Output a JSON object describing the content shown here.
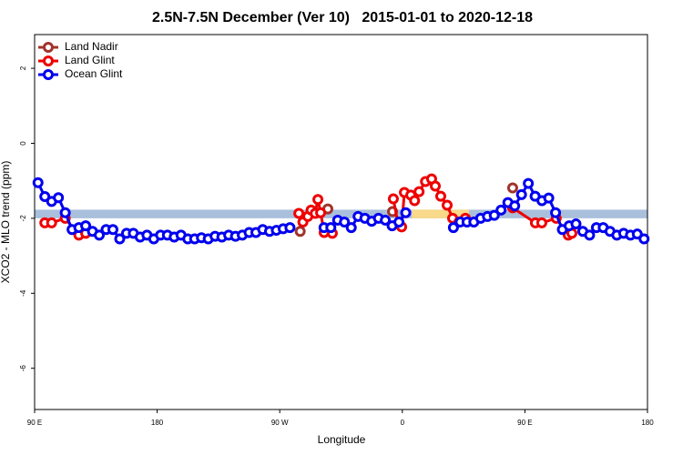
{
  "chart_data": {
    "type": "line",
    "title": "2.5N-7.5N December (Ver 10)   2015-01-01 to 2020-12-18",
    "x_label": "Longitude",
    "y_label": "XCO2 - MLO trend (ppm)",
    "xlim": [
      90,
      540
    ],
    "ylim": [
      -7.1,
      2.9
    ],
    "xticks": [
      {
        "value": 90,
        "label": "90 E"
      },
      {
        "value": 180,
        "label": "180"
      },
      {
        "value": 270,
        "label": "90 W"
      },
      {
        "value": 360,
        "label": "0"
      },
      {
        "value": 450,
        "label": "90 E"
      },
      {
        "value": 540,
        "label": "180"
      }
    ],
    "yticks": [
      -6,
      -4,
      -2,
      0,
      2
    ],
    "reference_band": {
      "ylim": [
        -2.0,
        -1.77
      ],
      "color": "#a9bfdc"
    },
    "highlight_band": {
      "xlim": [
        367,
        409
      ],
      "ylim": [
        -2.0,
        -1.77
      ],
      "color": "#f9d98a"
    },
    "legend": "top-left",
    "series": [
      {
        "name": "Land Nadir",
        "color": "#a0342c",
        "x": [
          285,
          305.3,
          352.8,
          441
        ],
        "values": [
          -2.35,
          -1.75,
          -1.82,
          -1.19
        ]
      },
      {
        "name": "Land Glint",
        "color": "#ee0000",
        "x": [
          97.5,
          102.5,
          112.5,
          122.5,
          127.5,
          284,
          287,
          290.6,
          293,
          296,
          298,
          300,
          302.6,
          308.6,
          353.4,
          356.8,
          359.5,
          361.5,
          366.2,
          369,
          372.3,
          377,
          381.5,
          384.2,
          388.2,
          392.9,
          396.9,
          401.6,
          406.3,
          441,
          457.7,
          462.4,
          473,
          481.8,
          484.5
        ],
        "values": [
          -2.12,
          -2.12,
          -2.0,
          -2.45,
          -2.4,
          -1.87,
          -2.1,
          -1.95,
          -1.78,
          -1.87,
          -1.5,
          -1.85,
          -2.38,
          -2.4,
          -1.48,
          -2.14,
          -2.23,
          -1.31,
          -1.38,
          -1.53,
          -1.29,
          -1.02,
          -0.95,
          -1.14,
          -1.41,
          -1.65,
          -2.0,
          -2.1,
          -2.0,
          -1.72,
          -2.12,
          -2.12,
          -2.0,
          -2.45,
          -2.4
        ]
      },
      {
        "name": "Ocean Glint",
        "color": "#0000ee",
        "x": [
          92.5,
          97.5,
          102.5,
          107.5,
          112.5,
          117.5,
          122.5,
          127.5,
          132.5,
          137.5,
          142.5,
          147.5,
          152.5,
          157.5,
          162.5,
          167.5,
          172.5,
          177.5,
          182.5,
          187.5,
          192.5,
          197.5,
          202.5,
          207.5,
          212.5,
          217.5,
          222.5,
          227.5,
          232.5,
          237.5,
          242.5,
          247.5,
          252.5,
          257.5,
          262.5,
          267.5,
          272.5,
          277.5,
          302.5,
          307.5,
          312.5,
          317.5,
          322.5,
          327.5,
          332.5,
          337.5,
          342.5,
          347.5,
          352.5,
          357.5,
          362.5,
          397.5,
          402.5,
          407.5,
          412.5,
          417.5,
          422.5,
          427.5,
          432.5,
          437.5,
          442.5,
          447.5,
          452.5,
          457.5,
          462.5,
          467.5,
          472.5,
          477.5,
          482.5,
          487.5,
          492.5,
          497.5,
          502.5,
          507.5,
          512.5,
          517.5,
          522.5,
          527.5,
          532.5,
          537.5
        ],
        "values": [
          -1.05,
          -1.42,
          -1.55,
          -1.45,
          -1.85,
          -2.3,
          -2.25,
          -2.2,
          -2.35,
          -2.45,
          -2.3,
          -2.3,
          -2.55,
          -2.4,
          -2.4,
          -2.5,
          -2.45,
          -2.55,
          -2.45,
          -2.45,
          -2.5,
          -2.45,
          -2.55,
          -2.55,
          -2.52,
          -2.55,
          -2.48,
          -2.5,
          -2.45,
          -2.48,
          -2.45,
          -2.38,
          -2.38,
          -2.3,
          -2.35,
          -2.32,
          -2.28,
          -2.25,
          -2.25,
          -2.25,
          -2.05,
          -2.1,
          -2.25,
          -1.95,
          -2.0,
          -2.08,
          -2.0,
          -2.05,
          -2.2,
          -2.1,
          -1.85,
          -2.25,
          -2.1,
          -2.1,
          -2.1,
          -2.0,
          -1.95,
          -1.92,
          -1.78,
          -1.58,
          -1.67,
          -1.37,
          -1.07,
          -1.41,
          -1.53,
          -1.46,
          -1.85,
          -2.3,
          -2.2,
          -2.15,
          -2.35,
          -2.45,
          -2.25,
          -2.25,
          -2.35,
          -2.45,
          -2.4,
          -2.45,
          -2.42,
          -2.55
        ]
      }
    ]
  }
}
